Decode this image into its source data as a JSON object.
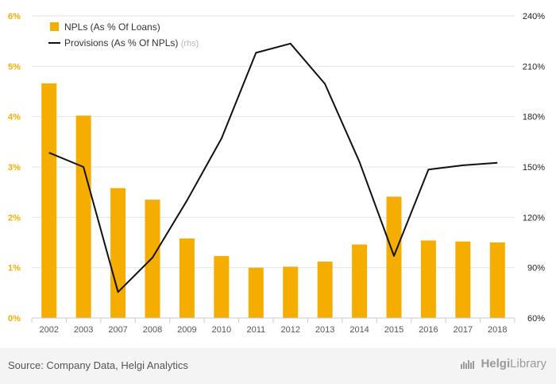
{
  "chart_data": {
    "type": "bar+line",
    "categories": [
      "2002",
      "2003",
      "2007",
      "2008",
      "2009",
      "2010",
      "2011",
      "2012",
      "2013",
      "2014",
      "2015",
      "2016",
      "2017",
      "2018"
    ],
    "series": [
      {
        "name": "NPLs (As % Of Loans)",
        "type": "bar",
        "axis": "left",
        "color": "#f5ad00",
        "values": [
          4.66,
          4.02,
          2.58,
          2.35,
          1.58,
          1.23,
          1.0,
          1.02,
          1.12,
          1.46,
          2.41,
          1.54,
          1.52,
          1.5
        ]
      },
      {
        "name": "Provisions (As % Of NPLs)",
        "name_suffix": "(rhs)",
        "type": "line",
        "axis": "right",
        "color": "#111111",
        "values": [
          158.5,
          150,
          75.5,
          96,
          130,
          167,
          218,
          223.5,
          199.5,
          153,
          97,
          148.5,
          151,
          152.5
        ]
      }
    ],
    "y_left": {
      "min": 0,
      "max": 6,
      "ticks": [
        "0%",
        "1%",
        "2%",
        "3%",
        "4%",
        "5%",
        "6%"
      ],
      "color": "#f5ad00"
    },
    "y_right": {
      "min": 60,
      "max": 240,
      "ticks": [
        "60%",
        "90%",
        "120%",
        "150%",
        "180%",
        "210%",
        "240%"
      ],
      "color": "#222222"
    },
    "grid": true,
    "legend_position": "top-left"
  },
  "footer": {
    "source": "Source: Company Data, Helgi Analytics",
    "brand_prefix": "Helgi",
    "brand_suffix": "Library"
  },
  "icons": {
    "brand": "helgi-library-logo-icon"
  }
}
